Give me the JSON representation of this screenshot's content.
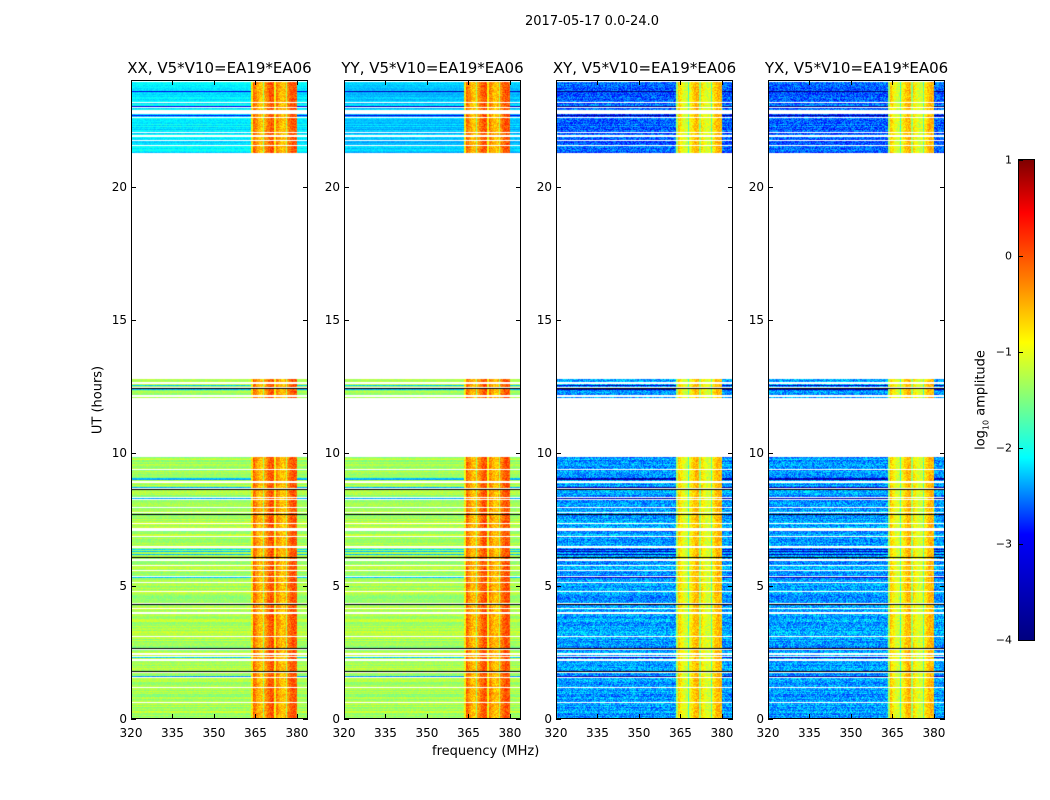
{
  "figure_title": "2017-05-17 0.0-24.0",
  "chart_data": {
    "type": "heatmap",
    "suptitle": "2017-05-17 0.0-24.0",
    "xlabel": "frequency (MHz)",
    "ylabel": "UT (hours)",
    "xlim": [
      320,
      384
    ],
    "ylim": [
      0,
      24
    ],
    "xticks": [
      "320",
      "335",
      "350",
      "365",
      "380"
    ],
    "yticks": [
      "0",
      "5",
      "10",
      "15",
      "20"
    ],
    "colorbar": {
      "label": "log10 amplitude",
      "label_main": "log",
      "label_sub": "10",
      "label_rest": " amplitude",
      "range": [
        -4,
        1
      ],
      "ticks": [
        "1",
        "0",
        "−1",
        "−2",
        "−3",
        "−4"
      ],
      "colormap": "jet"
    },
    "data_segments_ut": [
      [
        0,
        9.9
      ],
      [
        12.1,
        12.8
      ],
      [
        21.3,
        22.8
      ],
      [
        22.9,
        24
      ]
    ],
    "band_mhz": [
      363.5,
      380
    ],
    "panels": [
      {
        "title": "XX, V5*V10=EA19*EA06",
        "base_log_amp": -1.3,
        "band_log_amp": -0.3,
        "upper_base_log_amp": -2.2
      },
      {
        "title": "YY, V5*V10=EA19*EA06",
        "base_log_amp": -1.3,
        "band_log_amp": -0.3,
        "upper_base_log_amp": -2.4
      },
      {
        "title": "XY, V5*V10=EA19*EA06",
        "base_log_amp": -2.6,
        "band_log_amp": -0.8,
        "upper_base_log_amp": -2.9
      },
      {
        "title": "YX, V5*V10=EA19*EA06",
        "base_log_amp": -2.6,
        "band_log_amp": -0.8,
        "upper_base_log_amp": -2.9
      }
    ]
  }
}
